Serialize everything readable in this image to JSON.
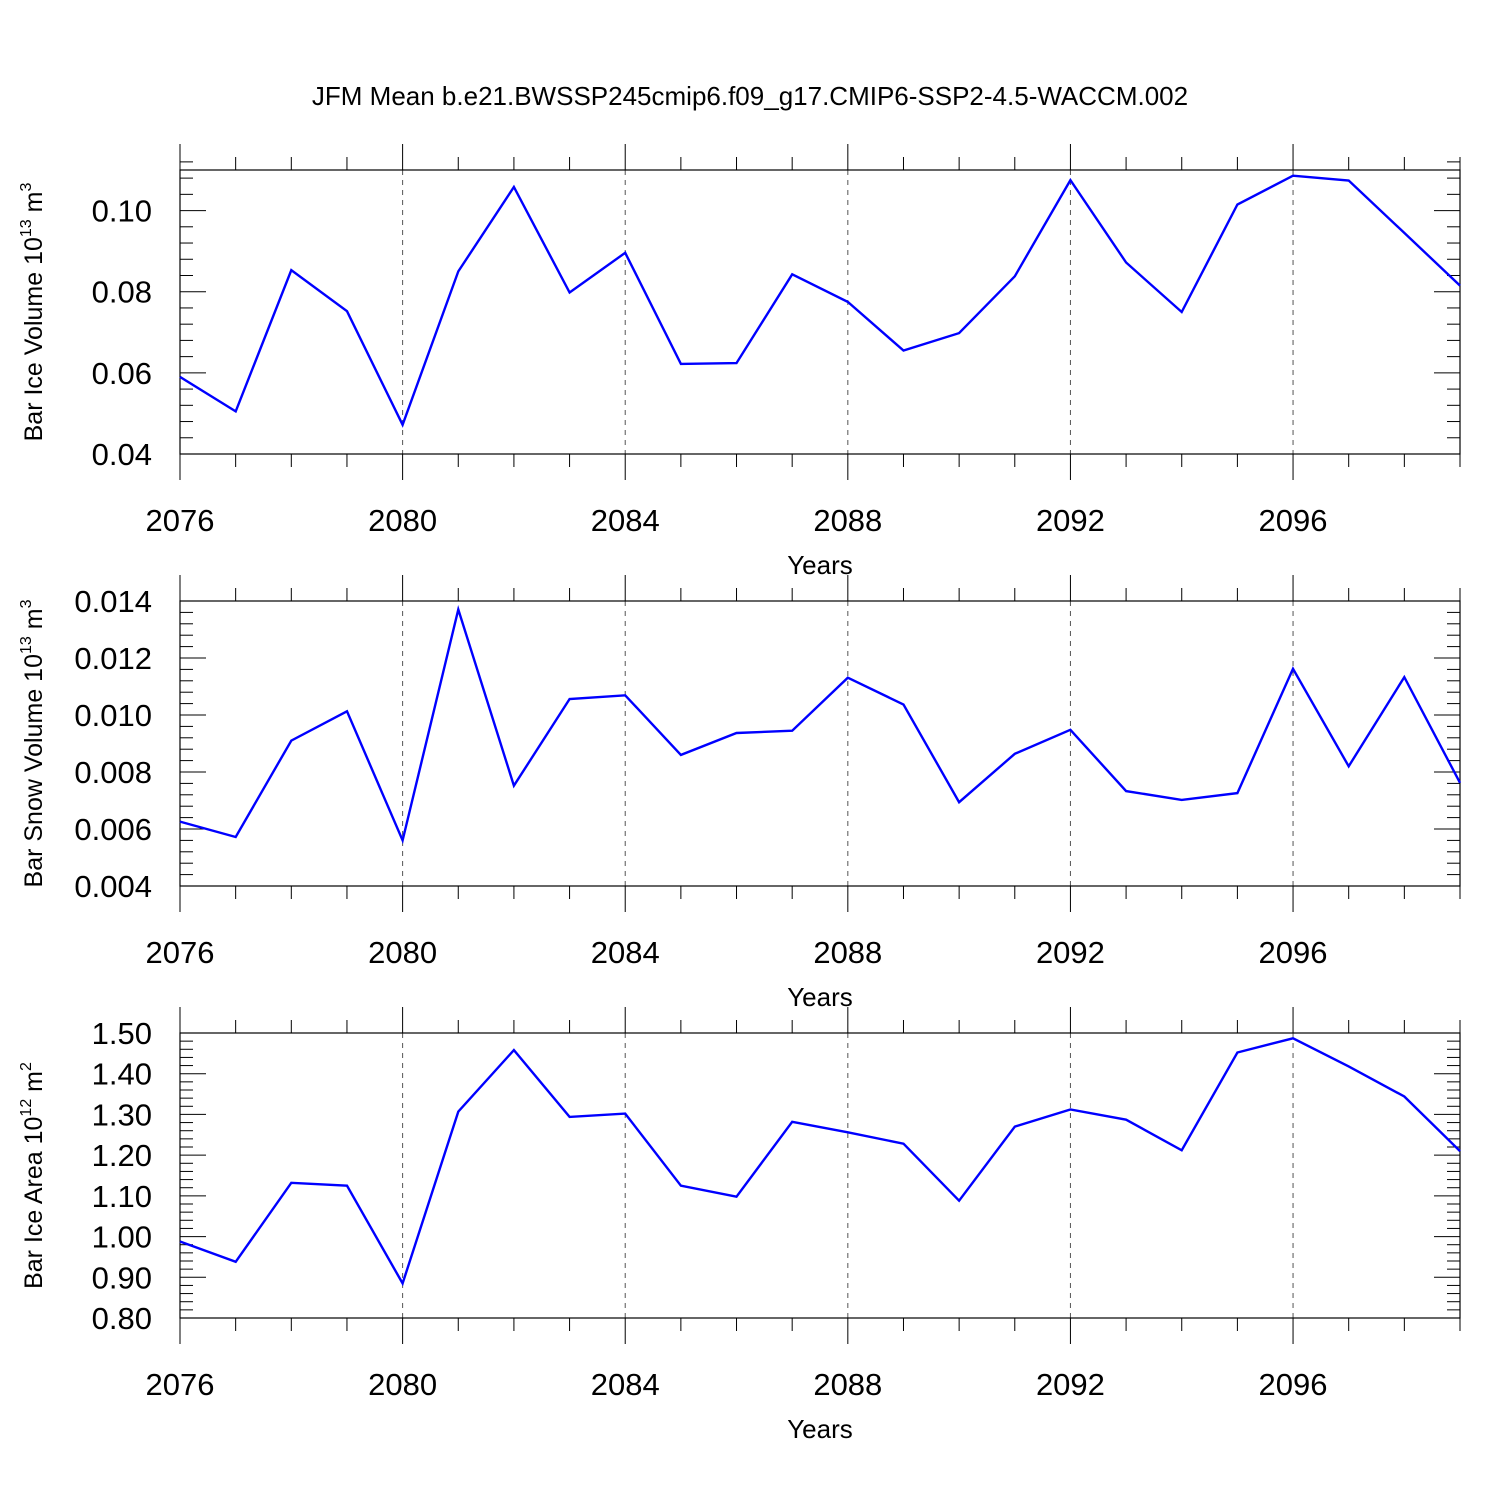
{
  "title": "JFM Mean b.e21.BWSSP245cmip6.f09_g17.CMIP6-SSP2-4.5-WACCM.002",
  "chart_data": [
    {
      "type": "line",
      "ylabel": {
        "text": "Bar Ice Volume 10",
        "sup1": "13",
        "unit": " m",
        "sup2": "3"
      },
      "xlabel": "Years",
      "xlim": [
        2076,
        2099
      ],
      "ylim": [
        0.04,
        0.11
      ],
      "x_ticks": [
        "2076",
        "2080",
        "2084",
        "2088",
        "2092",
        "2096"
      ],
      "y_ticks": [
        "0.04",
        "0.06",
        "0.08",
        "0.10"
      ],
      "grid": "vertical dashed at major x ticks",
      "series": [
        {
          "name": "Bar Ice Volume",
          "color": "#0000ff",
          "x": [
            2076,
            2077,
            2078,
            2079,
            2080,
            2081,
            2082,
            2083,
            2084,
            2085,
            2086,
            2087,
            2088,
            2089,
            2090,
            2091,
            2092,
            2093,
            2094,
            2095,
            2096,
            2097,
            2098,
            2099
          ],
          "values": [
            0.059,
            0.0505,
            0.0853,
            0.0752,
            0.0472,
            0.085,
            0.1058,
            0.0798,
            0.0896,
            0.0622,
            0.0624,
            0.0843,
            0.0775,
            0.0655,
            0.0698,
            0.0838,
            0.1075,
            0.0872,
            0.075,
            0.1015,
            0.1086,
            0.1074,
            0.0945,
            0.0815
          ]
        }
      ]
    },
    {
      "type": "line",
      "ylabel": {
        "text": "Bar Snow Volume 10",
        "sup1": "13",
        "unit": " m",
        "sup2": "3"
      },
      "xlabel": "Years",
      "xlim": [
        2076,
        2099
      ],
      "ylim": [
        0.004,
        0.014
      ],
      "x_ticks": [
        "2076",
        "2080",
        "2084",
        "2088",
        "2092",
        "2096"
      ],
      "y_ticks": [
        "0.004",
        "0.006",
        "0.008",
        "0.010",
        "0.012",
        "0.014"
      ],
      "grid": "vertical dashed at major x ticks",
      "series": [
        {
          "name": "Bar Snow Volume",
          "color": "#0000ff",
          "x": [
            2076,
            2077,
            2078,
            2079,
            2080,
            2081,
            2082,
            2083,
            2084,
            2085,
            2086,
            2087,
            2088,
            2089,
            2090,
            2091,
            2092,
            2093,
            2094,
            2095,
            2096,
            2097,
            2098,
            2099
          ],
          "values": [
            0.00626,
            0.00572,
            0.0091,
            0.01013,
            0.0056,
            0.0137,
            0.00752,
            0.01056,
            0.01069,
            0.0086,
            0.00937,
            0.00945,
            0.01131,
            0.01037,
            0.00694,
            0.00864,
            0.00948,
            0.00733,
            0.00702,
            0.00726,
            0.01162,
            0.0082,
            0.01133,
            0.00762
          ]
        }
      ]
    },
    {
      "type": "line",
      "ylabel": {
        "text": "Bar Ice Area 10",
        "sup1": "12",
        "unit": " m",
        "sup2": "2"
      },
      "xlabel": "Years",
      "xlim": [
        2076,
        2099
      ],
      "ylim": [
        0.8,
        1.5
      ],
      "x_ticks": [
        "2076",
        "2080",
        "2084",
        "2088",
        "2092",
        "2096"
      ],
      "y_ticks": [
        "0.80",
        "0.90",
        "1.00",
        "1.10",
        "1.20",
        "1.30",
        "1.40",
        "1.50"
      ],
      "grid": "vertical dashed at major x ticks",
      "series": [
        {
          "name": "Bar Ice Area",
          "color": "#0000ff",
          "x": [
            2076,
            2077,
            2078,
            2079,
            2080,
            2081,
            2082,
            2083,
            2084,
            2085,
            2086,
            2087,
            2088,
            2089,
            2090,
            2091,
            2092,
            2093,
            2094,
            2095,
            2096,
            2097,
            2098,
            2099
          ],
          "values": [
            0.988,
            0.938,
            1.132,
            1.125,
            0.885,
            1.307,
            1.458,
            1.294,
            1.302,
            1.125,
            1.098,
            1.282,
            1.256,
            1.228,
            1.088,
            1.27,
            1.312,
            1.287,
            1.212,
            1.452,
            1.487,
            1.418,
            1.344,
            1.21
          ]
        }
      ]
    }
  ]
}
